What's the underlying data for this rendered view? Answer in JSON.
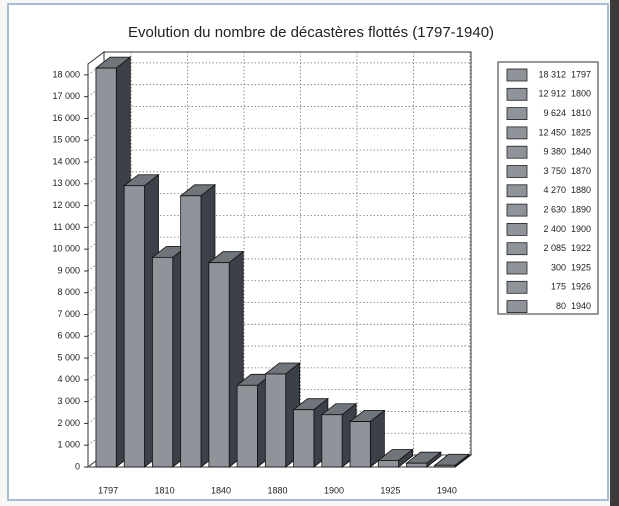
{
  "chart_data": {
    "type": "bar3d",
    "title": "Evolution du nombre de décastères flottés (1797-1940)",
    "categories": [
      "1797",
      "1800",
      "1810",
      "1825",
      "1840",
      "1870",
      "1880",
      "1890",
      "1900",
      "1922",
      "1925",
      "1926",
      "1940"
    ],
    "values": [
      18312,
      12912,
      9624,
      12450,
      9380,
      3750,
      4270,
      2630,
      2400,
      2085,
      300,
      175,
      80
    ],
    "value_labels": [
      "18 312",
      "12 912",
      "9 624",
      "12 450",
      "9 380",
      "3 750",
      "4 270",
      "2 630",
      "2 400",
      "2 085",
      "300",
      "175",
      "80"
    ],
    "color": "#8f939a",
    "ylim": [
      0,
      18500
    ],
    "yticks": [
      0,
      {
        "value": 1000,
        "label": "1 000"
      },
      {
        "value": 2000,
        "label": "2 000"
      },
      {
        "value": 3000,
        "label": "3 000"
      },
      {
        "value": 4000,
        "label": "4 000"
      },
      {
        "value": 5000,
        "label": "5 000"
      },
      {
        "value": 6000,
        "label": "6 000"
      },
      {
        "value": 7000,
        "label": "7 000"
      },
      {
        "value": 8000,
        "label": "8 000"
      },
      {
        "value": 9000,
        "label": "9 000"
      },
      {
        "value": 10000,
        "label": "10 000"
      },
      {
        "value": 11000,
        "label": "11 000"
      },
      {
        "value": 12000,
        "label": "12 000"
      },
      {
        "value": 13000,
        "label": "13 000"
      },
      {
        "value": 14000,
        "label": "14 000"
      },
      {
        "value": 15000,
        "label": "15 000"
      },
      {
        "value": 16000,
        "label": "16 000"
      },
      {
        "value": 17000,
        "label": "17 000"
      },
      {
        "value": 18000,
        "label": "18 000"
      }
    ],
    "grid": true
  }
}
